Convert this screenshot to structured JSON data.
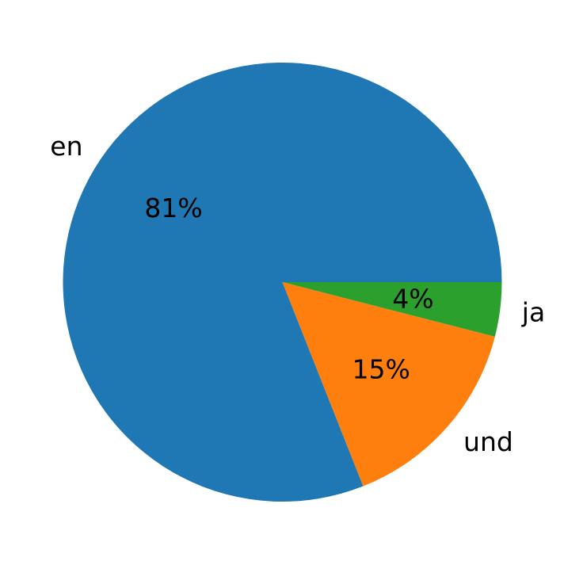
{
  "chart_data": {
    "type": "pie",
    "slices": [
      {
        "label": "en",
        "value": 81,
        "pct_label": "81%",
        "color": "#1f77b4"
      },
      {
        "label": "und",
        "value": 15,
        "pct_label": "15%",
        "color": "#ff7f0e"
      },
      {
        "label": "ja",
        "value": 4,
        "pct_label": "4%",
        "color": "#2ca02c"
      }
    ],
    "start_angle_deg": 0,
    "direction": "counterclockwise",
    "legend": "none"
  }
}
